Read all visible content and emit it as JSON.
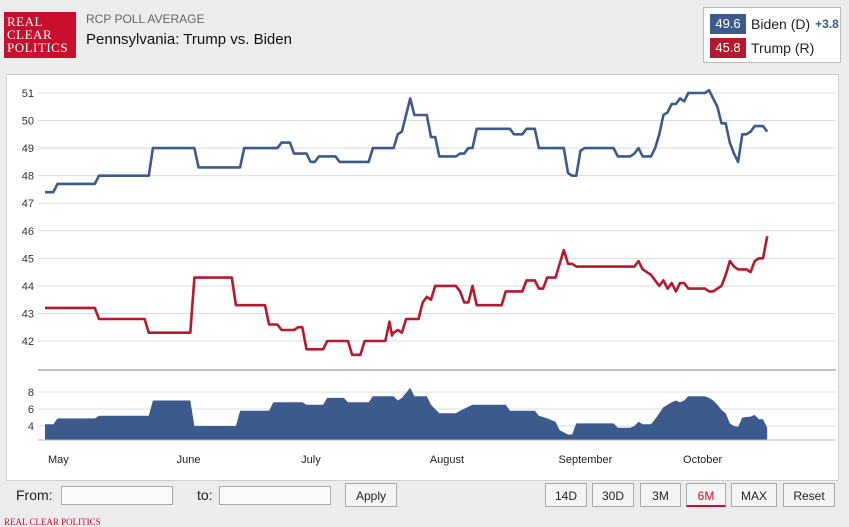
{
  "logo": {
    "line1": "REAL",
    "line2": "CLEAR",
    "line3": "POLITICS"
  },
  "header": {
    "subtitle": "RCP POLL AVERAGE",
    "title": "Pennsylvania: Trump vs. Biden"
  },
  "legend": {
    "biden": {
      "value": "49.6",
      "label": "Biden (D)",
      "spread": "+3.8",
      "color": "#3d5a8c"
    },
    "trump": {
      "value": "45.8",
      "label": "Trump (R)",
      "color": "#b5192d"
    }
  },
  "chart_data": {
    "type": "line",
    "title": "Pennsylvania: Trump vs. Biden",
    "x_tick_labels": [
      "May",
      "June",
      "July",
      "August",
      "September",
      "October"
    ],
    "x_range_days": [
      0,
      186
    ],
    "x_label_days": [
      0,
      31,
      61,
      92,
      123,
      153
    ],
    "ylim": [
      41,
      51.5
    ],
    "y_ticks": [
      42,
      43,
      44,
      45,
      46,
      47,
      48,
      49,
      50,
      51
    ],
    "series": [
      {
        "name": "Biden (D)",
        "color": "#3d5a8c",
        "points": [
          [
            0,
            47.4
          ],
          [
            2,
            47.4
          ],
          [
            3,
            47.7
          ],
          [
            12,
            47.7
          ],
          [
            13,
            48.0
          ],
          [
            25,
            48.0
          ],
          [
            26,
            49.0
          ],
          [
            36,
            49.0
          ],
          [
            37,
            48.3
          ],
          [
            47,
            48.3
          ],
          [
            48,
            49.0
          ],
          [
            56,
            49.0
          ],
          [
            57,
            49.2
          ],
          [
            59,
            49.2
          ],
          [
            60,
            48.8
          ],
          [
            63,
            48.8
          ],
          [
            64,
            48.5
          ],
          [
            65,
            48.5
          ],
          [
            66,
            48.7
          ],
          [
            70,
            48.7
          ],
          [
            71,
            48.5
          ],
          [
            78,
            48.5
          ],
          [
            79,
            49.0
          ],
          [
            84,
            49.0
          ],
          [
            85,
            49.5
          ],
          [
            86,
            49.6
          ],
          [
            88,
            50.8
          ],
          [
            89,
            50.2
          ],
          [
            92,
            50.2
          ],
          [
            93,
            49.4
          ],
          [
            94,
            49.4
          ],
          [
            95,
            48.7
          ],
          [
            99,
            48.7
          ],
          [
            100,
            48.8
          ],
          [
            101,
            48.8
          ],
          [
            102,
            49.0
          ],
          [
            103,
            49.0
          ],
          [
            104,
            49.7
          ],
          [
            112,
            49.7
          ],
          [
            113,
            49.5
          ],
          [
            115,
            49.5
          ],
          [
            116,
            49.7
          ],
          [
            118,
            49.7
          ],
          [
            119,
            49.0
          ],
          [
            125,
            49.0
          ],
          [
            126,
            48.1
          ],
          [
            127,
            48.0
          ],
          [
            128,
            48.0
          ],
          [
            129,
            48.9
          ],
          [
            130,
            49.0
          ],
          [
            137,
            49.0
          ],
          [
            138,
            48.7
          ],
          [
            141,
            48.7
          ],
          [
            142,
            48.8
          ],
          [
            143,
            49.0
          ],
          [
            144,
            48.7
          ],
          [
            146,
            48.7
          ],
          [
            147,
            49.0
          ],
          [
            148,
            49.5
          ],
          [
            149,
            50.2
          ],
          [
            150,
            50.3
          ],
          [
            151,
            50.6
          ],
          [
            152,
            50.6
          ],
          [
            153,
            50.8
          ],
          [
            154,
            50.7
          ],
          [
            155,
            51.0
          ],
          [
            159,
            51.0
          ],
          [
            160,
            51.1
          ],
          [
            161,
            50.8
          ],
          [
            162,
            50.5
          ],
          [
            163,
            49.9
          ],
          [
            164,
            49.9
          ],
          [
            165,
            49.2
          ],
          [
            166,
            48.8
          ],
          [
            167,
            48.5
          ],
          [
            168,
            49.5
          ],
          [
            169,
            49.5
          ],
          [
            170,
            49.6
          ],
          [
            171,
            49.8
          ],
          [
            173,
            49.8
          ],
          [
            174,
            49.6
          ]
        ]
      },
      {
        "name": "Trump (R)",
        "color": "#b5192d",
        "points": [
          [
            0,
            43.2
          ],
          [
            12,
            43.2
          ],
          [
            13,
            42.8
          ],
          [
            24,
            42.8
          ],
          [
            25,
            42.3
          ],
          [
            35,
            42.3
          ],
          [
            36,
            44.3
          ],
          [
            45,
            44.3
          ],
          [
            46,
            43.3
          ],
          [
            53,
            43.3
          ],
          [
            54,
            42.6
          ],
          [
            56,
            42.6
          ],
          [
            57,
            42.4
          ],
          [
            60,
            42.4
          ],
          [
            61,
            42.5
          ],
          [
            62,
            42.5
          ],
          [
            63,
            41.7
          ],
          [
            67,
            41.7
          ],
          [
            68,
            42.0
          ],
          [
            73,
            42.0
          ],
          [
            74,
            41.5
          ],
          [
            76,
            41.5
          ],
          [
            77,
            42.0
          ],
          [
            82,
            42.0
          ],
          [
            83,
            42.7
          ],
          [
            83.6,
            42.2
          ],
          [
            84,
            42.3
          ],
          [
            85,
            42.4
          ],
          [
            86,
            42.3
          ],
          [
            87,
            42.8
          ],
          [
            90,
            42.8
          ],
          [
            91,
            43.4
          ],
          [
            92,
            43.6
          ],
          [
            93,
            43.5
          ],
          [
            94,
            44.0
          ],
          [
            99,
            44.0
          ],
          [
            100,
            43.8
          ],
          [
            101,
            43.4
          ],
          [
            102,
            43.4
          ],
          [
            103,
            44.0
          ],
          [
            104,
            43.3
          ],
          [
            110,
            43.3
          ],
          [
            111,
            43.8
          ],
          [
            115,
            43.8
          ],
          [
            116,
            44.2
          ],
          [
            118,
            44.2
          ],
          [
            119,
            43.9
          ],
          [
            120,
            43.9
          ],
          [
            121,
            44.3
          ],
          [
            123,
            44.3
          ],
          [
            124,
            44.8
          ],
          [
            125,
            45.3
          ],
          [
            126,
            44.8
          ],
          [
            127,
            44.8
          ],
          [
            128,
            44.7
          ],
          [
            142,
            44.7
          ],
          [
            143,
            44.9
          ],
          [
            144,
            44.6
          ],
          [
            145,
            44.5
          ],
          [
            146,
            44.4
          ],
          [
            147,
            44.2
          ],
          [
            148,
            44.0
          ],
          [
            149,
            44.2
          ],
          [
            150,
            43.9
          ],
          [
            151,
            44.1
          ],
          [
            152,
            43.8
          ],
          [
            153,
            44.1
          ],
          [
            154,
            44.1
          ],
          [
            155,
            43.9
          ],
          [
            159,
            43.9
          ],
          [
            160,
            43.8
          ],
          [
            161,
            43.8
          ],
          [
            162,
            43.9
          ],
          [
            163,
            44.0
          ],
          [
            164,
            44.4
          ],
          [
            165,
            44.9
          ],
          [
            166,
            44.7
          ],
          [
            167,
            44.6
          ],
          [
            169,
            44.6
          ],
          [
            170,
            44.5
          ],
          [
            171,
            44.9
          ],
          [
            172,
            45.0
          ],
          [
            173,
            45.0
          ],
          [
            174,
            45.8
          ]
        ]
      }
    ],
    "spread_panel": {
      "type": "area",
      "name": "Spread",
      "color": "#3d5a8c",
      "ylim": [
        2,
        9.5
      ],
      "y_ticks": [
        4,
        6,
        8
      ],
      "points": [
        [
          0,
          4.2
        ],
        [
          2,
          4.2
        ],
        [
          3,
          4.9
        ],
        [
          12,
          4.9
        ],
        [
          13,
          5.2
        ],
        [
          25,
          5.2
        ],
        [
          26,
          7.0
        ],
        [
          35,
          7.0
        ],
        [
          36,
          4.0
        ],
        [
          46,
          4.0
        ],
        [
          47,
          5.8
        ],
        [
          54,
          5.8
        ],
        [
          55,
          6.8
        ],
        [
          62,
          6.8
        ],
        [
          63,
          6.5
        ],
        [
          67,
          6.5
        ],
        [
          68,
          7.3
        ],
        [
          72,
          7.3
        ],
        [
          73,
          6.8
        ],
        [
          78,
          6.8
        ],
        [
          79,
          7.5
        ],
        [
          84,
          7.5
        ],
        [
          85,
          7.0
        ],
        [
          86,
          7.3
        ],
        [
          88,
          8.5
        ],
        [
          89,
          7.5
        ],
        [
          92,
          7.5
        ],
        [
          93,
          6.5
        ],
        [
          95,
          5.5
        ],
        [
          99,
          5.5
        ],
        [
          100,
          5.8
        ],
        [
          103,
          6.5
        ],
        [
          111,
          6.5
        ],
        [
          112,
          5.8
        ],
        [
          118,
          5.8
        ],
        [
          119,
          5.2
        ],
        [
          121,
          4.9
        ],
        [
          123,
          4.5
        ],
        [
          124,
          3.5
        ],
        [
          126,
          3.0
        ],
        [
          127,
          3.0
        ],
        [
          128,
          4.3
        ],
        [
          137,
          4.3
        ],
        [
          138,
          3.8
        ],
        [
          141,
          3.8
        ],
        [
          142,
          4.0
        ],
        [
          143,
          4.5
        ],
        [
          144,
          4.2
        ],
        [
          146,
          4.2
        ],
        [
          147,
          4.8
        ],
        [
          148,
          5.5
        ],
        [
          149,
          6.2
        ],
        [
          150,
          6.5
        ],
        [
          151,
          6.8
        ],
        [
          152,
          7.0
        ],
        [
          153,
          6.8
        ],
        [
          154,
          7.0
        ],
        [
          155,
          7.5
        ],
        [
          159,
          7.5
        ],
        [
          160,
          7.3
        ],
        [
          161,
          7.0
        ],
        [
          162,
          6.5
        ],
        [
          163,
          5.9
        ],
        [
          164,
          5.5
        ],
        [
          165,
          4.3
        ],
        [
          166,
          4.0
        ],
        [
          167,
          3.9
        ],
        [
          168,
          5.0
        ],
        [
          170,
          5.1
        ],
        [
          171,
          5.3
        ],
        [
          172,
          4.8
        ],
        [
          173,
          4.8
        ],
        [
          174,
          3.8
        ]
      ]
    }
  },
  "controls": {
    "from_label": "From:",
    "to_label": "to:",
    "apply_label": "Apply",
    "range_buttons": [
      "14D",
      "30D",
      "3M",
      "6M",
      "MAX",
      "Reset"
    ],
    "active_range": "6M"
  },
  "footer": {
    "text": "REAL CLEAR POLITICS"
  }
}
